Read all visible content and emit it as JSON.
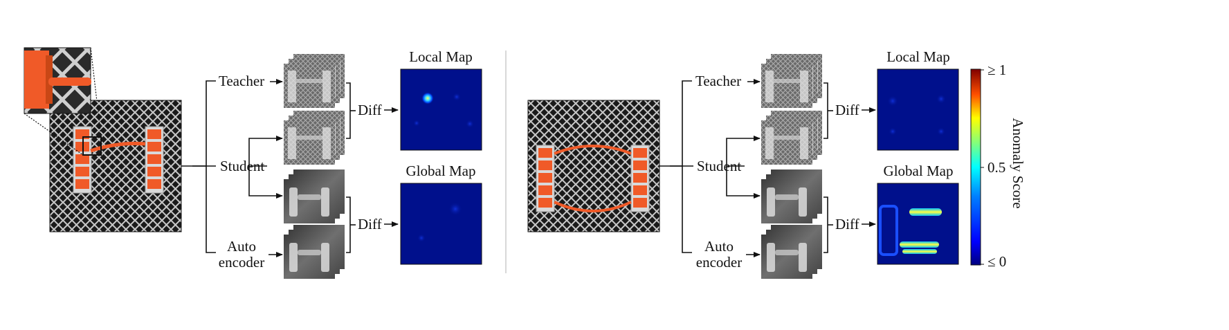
{
  "left_panel": {
    "labels": {
      "teacher": "Teacher",
      "student": "Student",
      "auto_line1": "Auto",
      "auto_line2": "encoder",
      "diff_top": "Diff",
      "diff_bottom": "Diff",
      "local_map": "Local Map",
      "global_map": "Global Map"
    }
  },
  "right_panel": {
    "labels": {
      "teacher": "Teacher",
      "student": "Student",
      "auto_line1": "Auto",
      "auto_line2": "encoder",
      "diff_top": "Diff",
      "diff_bottom": "Diff",
      "local_map": "Local Map",
      "global_map": "Global Map"
    }
  },
  "colorbar": {
    "title": "Anomaly Score",
    "ticks": [
      "≥ 1",
      "0.5",
      "≤ 0"
    ],
    "colors": [
      "#00007f",
      "#0000ff",
      "#007fff",
      "#00ffff",
      "#7fff7f",
      "#ffff00",
      "#ff7f00",
      "#ff0000",
      "#7f0000"
    ]
  },
  "colors": {
    "cable": "#f05a28",
    "heatmap_background": "#00108c"
  }
}
